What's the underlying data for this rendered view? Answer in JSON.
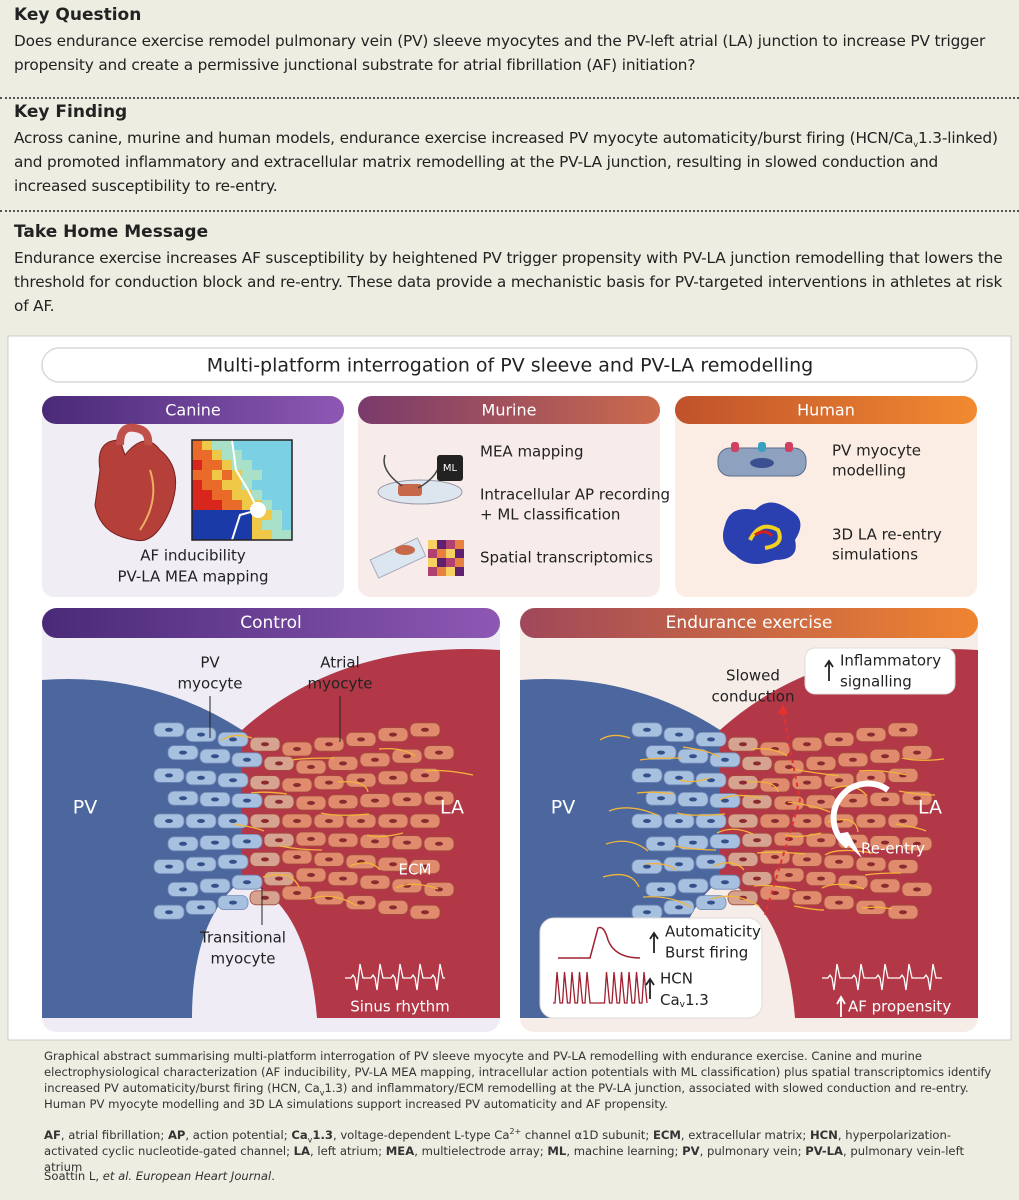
{
  "key_question": {
    "title": "Key Question",
    "text": "Does endurance exercise remodel pulmonary vein (PV) sleeve myocytes and the PV-left atrial (LA) junction to increase PV trigger propensity and create a permissive junctional substrate for atrial fibrillation (AF) initiation?"
  },
  "key_finding": {
    "title": "Key Finding",
    "text": [
      "Across canine, murine and human models, endurance exercise increased PV myocyte automaticity/burst firing (HCN/Ca",
      "v",
      "1.3-linked) and promoted inflammatory and extracellular matrix remodelling at the PV-LA junction, resulting in slowed conduction and increased susceptibility to re-entry."
    ]
  },
  "take_home": {
    "title": "Take Home Message",
    "text": "Endurance exercise increases AF susceptibility by heightened PV trigger propensity with PV-LA junction remodelling that lowers the threshold for conduction block and re-entry. These data provide a mechanistic basis for PV-targeted interventions in athletes at risk of AF."
  },
  "figure": {
    "title": "Multi-platform interrogation of PV sleeve and PV-LA remodelling",
    "canine": {
      "label": "Canine",
      "caption": [
        "AF inducibility",
        "PV-LA MEA mapping"
      ]
    },
    "murine": {
      "label": "Murine",
      "chip": "ML",
      "mea": "MEA mapping",
      "ap": [
        "Intracellular AP recording",
        "+ ML classification"
      ],
      "spatial": "Spatial transcriptomics"
    },
    "human": {
      "label": "Human",
      "myocyte": [
        "PV myocyte",
        "modelling"
      ],
      "reentry": [
        "3D LA re-entry",
        "simulations"
      ]
    },
    "control": {
      "label": "Control",
      "pv": "PV",
      "la": "LA",
      "pv_myocyte": [
        "PV",
        "myocyte"
      ],
      "atrial_myocyte": [
        "Atrial",
        "myocyte"
      ],
      "ecm": "ECM",
      "transitional": [
        "Transitional",
        "myocyte"
      ],
      "rhythm": "Sinus rhythm"
    },
    "exercise": {
      "label": "Endurance exercise",
      "pv": "PV",
      "la": "LA",
      "slowed": [
        "Slowed",
        "conduction"
      ],
      "inflammatory": [
        "Inflammatory",
        "signalling"
      ],
      "reentry": "Re-entry",
      "automaticity": [
        "Automaticity",
        "Burst firing"
      ],
      "hcn": "HCN",
      "cav": [
        "Ca",
        "v",
        "1.3"
      ],
      "af": "AF propensity"
    }
  },
  "caption": {
    "summary": [
      "Graphical abstract summarising multi-platform interrogation of PV sleeve myocyte and PV-LA remodelling with endurance exercise. Canine and murine electrophysiological characterization (AF inducibility, PV-LA MEA mapping, intracellular action potentials with ML classification) plus spatial transcriptomics identify increased PV automaticity/burst firing (HCN, Ca",
      "v",
      "1.3) and inflammatory/ECM remodelling at the PV-LA junction, associated with slowed conduction and re-entry. Human PV myocyte modelling and 3D LA simulations support increased PV automaticity and AF propensity."
    ],
    "abbreviations": [
      [
        "AF",
        ", atrial fibrillation; "
      ],
      [
        "AP",
        ", action potential; "
      ],
      [
        "Ca",
        "v",
        "1.3",
        ", voltage-dependent L-type Ca",
        "2+",
        " channel α1D subunit; "
      ],
      [
        "ECM",
        ", extracellular matrix; "
      ],
      [
        "HCN",
        ", hyperpolarization-activated cyclic nucleotide-gated channel; "
      ],
      [
        "LA",
        ", left atrium; "
      ],
      [
        "MEA",
        ", multielectrode array; "
      ],
      [
        "ML",
        ", machine learning; "
      ],
      [
        "PV",
        ", pulmonary vein; "
      ],
      [
        "PV-LA",
        ", pulmonary vein-left atrium"
      ]
    ],
    "citation": [
      "Soattin L, ",
      "et al. European Heart Journal",
      "."
    ]
  }
}
